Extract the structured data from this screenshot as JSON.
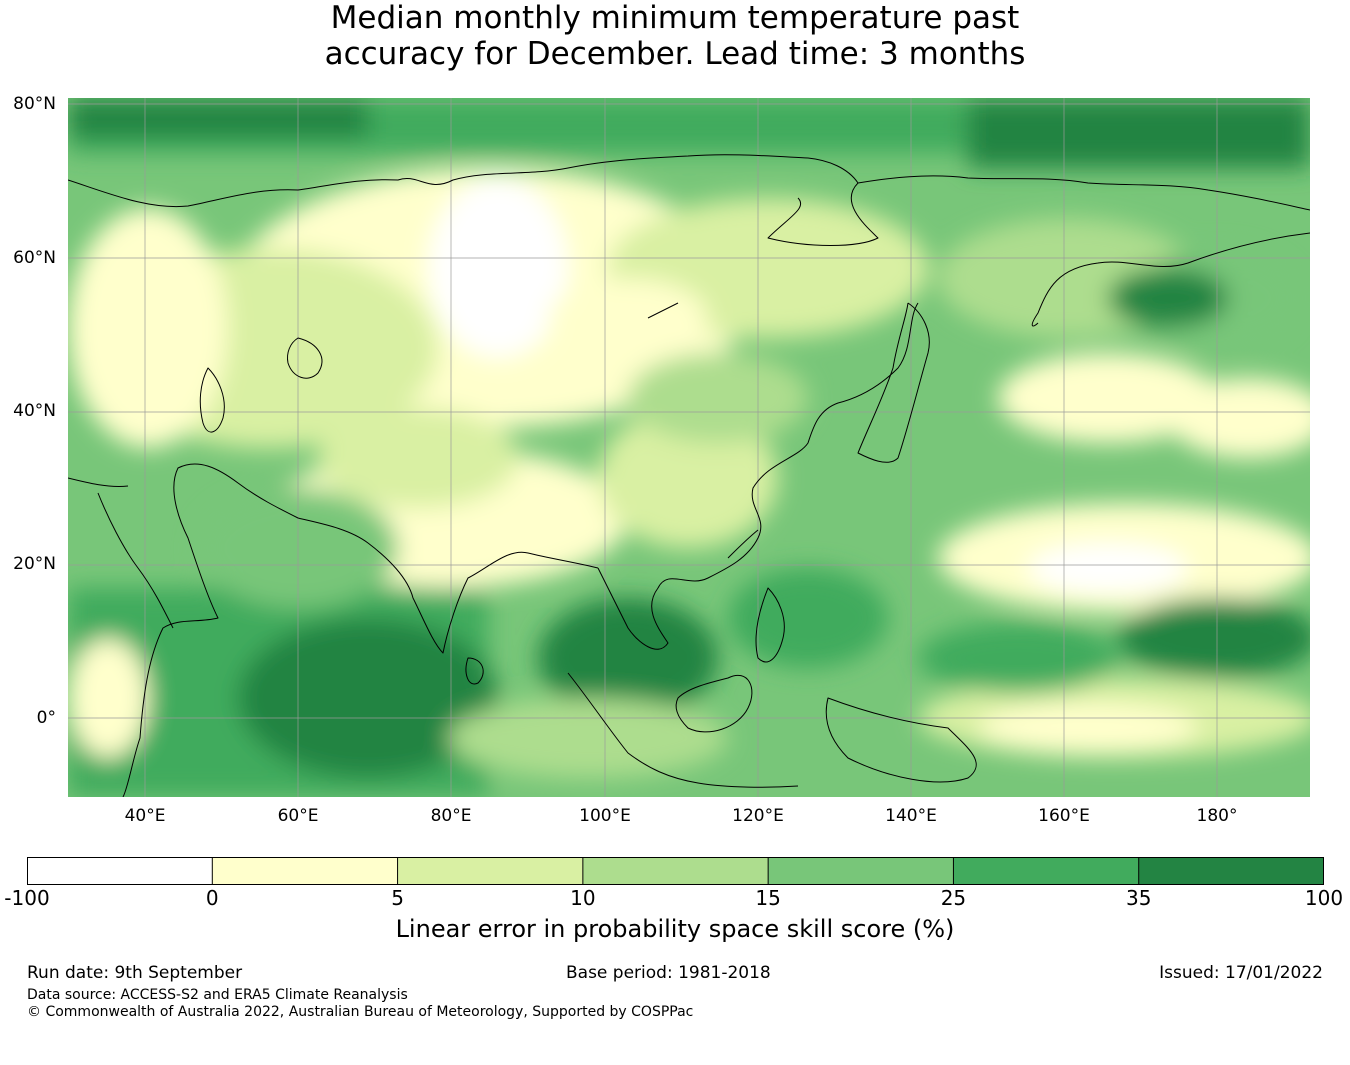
{
  "title": {
    "line1": "Median monthly minimum temperature past",
    "line2": "accuracy for December. Lead time: 3 months"
  },
  "map": {
    "lat_labels": [
      "80°N",
      "60°N",
      "40°N",
      "20°N",
      "0°"
    ],
    "lon_labels": [
      "40°E",
      "60°E",
      "80°E",
      "100°E",
      "120°E",
      "140°E",
      "160°E",
      "180°"
    ]
  },
  "legend": {
    "ticks": [
      "-100",
      "0",
      "5",
      "10",
      "15",
      "25",
      "35",
      "100"
    ],
    "colors": [
      "#ffffff",
      "#ffffcc",
      "#d9f0a3",
      "#addd8e",
      "#78c679",
      "#41ab5d",
      "#238443"
    ],
    "label": "Linear error in probability space skill score (%)"
  },
  "footer": {
    "run_date": "Run date: 9th September",
    "base_period": "Base period: 1981-2018",
    "issued": "Issued: 17/01/2022",
    "data_source": "Data source: ACCESS-S2 and ERA5 Climate Reanalysis",
    "copyright": "© Commonwealth of Australia 2022, Australian Bureau of Meteorology, Supported by COSPPac"
  }
}
